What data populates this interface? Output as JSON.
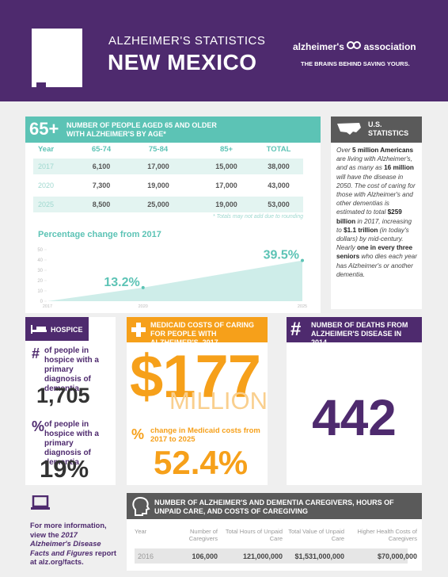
{
  "header": {
    "subtitle": "ALZHEIMER'S STATISTICS",
    "title": "NEW MEXICO",
    "logo": {
      "name_left": "alzheimer's",
      "name_right": "association",
      "tagline": "THE BRAINS BEHIND SAVING YOURS."
    }
  },
  "age_table": {
    "badge": "65+",
    "title": "NUMBER OF PEOPLE AGED 65 AND OLDER WITH ALZHEIMER'S BY AGE*",
    "columns": [
      "Year",
      "65-74",
      "75-84",
      "85+",
      "TOTAL"
    ],
    "rows": [
      [
        "2017",
        "6,100",
        "17,000",
        "15,000",
        "38,000"
      ],
      [
        "2020",
        "7,300",
        "19,000",
        "17,000",
        "43,000"
      ],
      [
        "2025",
        "8,500",
        "25,000",
        "19,000",
        "53,000"
      ]
    ],
    "footnote": "* Totals may not add due to rounding"
  },
  "chart_data": {
    "type": "area",
    "title": "Percentage change from 2017",
    "x": [
      2017,
      2020,
      2025
    ],
    "values": [
      0,
      13.2,
      39.5
    ],
    "value_labels": [
      null,
      "13.2%",
      "39.5%"
    ],
    "xlim": [
      2017,
      2025
    ],
    "xticks": [
      2017,
      2020,
      2025
    ],
    "ylim": [
      0,
      50
    ],
    "yticks": [
      0,
      10,
      20,
      30,
      40,
      50
    ],
    "color": "#5cc3b5"
  },
  "us_stats": {
    "title": "U.S. STATISTICS",
    "paragraph": [
      {
        "text": "Over ",
        "bold": false
      },
      {
        "text": "5 million Americans",
        "bold": true
      },
      {
        "text": " are living with Alzheimer's, and as many as ",
        "bold": false
      },
      {
        "text": "16 million",
        "bold": true
      },
      {
        "text": " will have the disease in 2050. The cost of caring for those with Alzheimer's and other dementias is estimated to total ",
        "bold": false
      },
      {
        "text": "$259 billion",
        "bold": true
      },
      {
        "text": " in 2017, increasing to ",
        "bold": false
      },
      {
        "text": "$1.1 trillion",
        "bold": true
      },
      {
        "text": " (in today's dollars) by mid-century. Nearly ",
        "bold": false
      },
      {
        "text": "one in every three seniors",
        "bold": true
      },
      {
        "text": " who dies each year has Alzheimer's or another dementia.",
        "bold": false
      }
    ]
  },
  "hospice": {
    "title": "HOSPICE",
    "items": [
      {
        "symbol": "#",
        "label": "of people in hospice with a primary diagnosis of dementia",
        "value": "1,705"
      },
      {
        "symbol": "%",
        "label": "of people in hospice with a primary diagnosis of dementia",
        "value": "19%"
      }
    ]
  },
  "medicaid": {
    "title": "MEDICAID COSTS OF CARING FOR PEOPLE WITH ALZHEIMER'S, 2017",
    "amount": "$177",
    "unit": "MILLION",
    "change_symbol": "%",
    "change_label": "change in Medicaid costs from 2017 to 2025",
    "change_value": "52.4%"
  },
  "deaths": {
    "symbol": "#",
    "title": "NUMBER OF DEATHS FROM ALZHEIMER'S DISEASE IN 2014",
    "value": "442"
  },
  "more_info": [
    {
      "text": "For more information, view the ",
      "italic": false
    },
    {
      "text": "2017 Alzheimer's Disease Facts and Figures",
      "italic": true
    },
    {
      "text": " report at alz.org/facts.",
      "italic": false
    }
  ],
  "caregivers": {
    "title": "NUMBER OF ALZHEIMER'S AND DEMENTIA CAREGIVERS, HOURS OF UNPAID CARE, AND COSTS OF CAREGIVING",
    "columns": [
      "Year",
      "Number of Caregivers",
      "Total Hours of Unpaid Care",
      "Total Value of Unpaid Care",
      "Higher Health Costs of Caregivers"
    ],
    "rows": [
      [
        "2016",
        "106,000",
        "121,000,000",
        "$1,531,000,000",
        "$70,000,000"
      ]
    ]
  }
}
